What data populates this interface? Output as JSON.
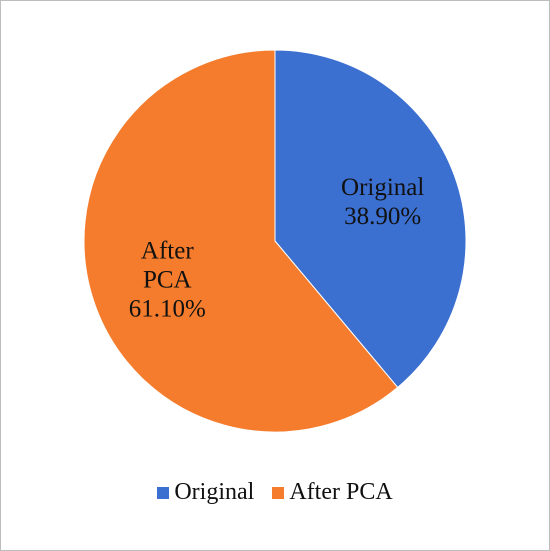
{
  "chart_data": {
    "type": "pie",
    "categories": [
      "Original",
      "After PCA"
    ],
    "values": [
      38.9,
      61.1
    ],
    "value_labels": [
      "38.90%",
      "61.10%"
    ],
    "colors": [
      "#3b6fd0",
      "#f47c2c"
    ],
    "legend": "bottom"
  }
}
